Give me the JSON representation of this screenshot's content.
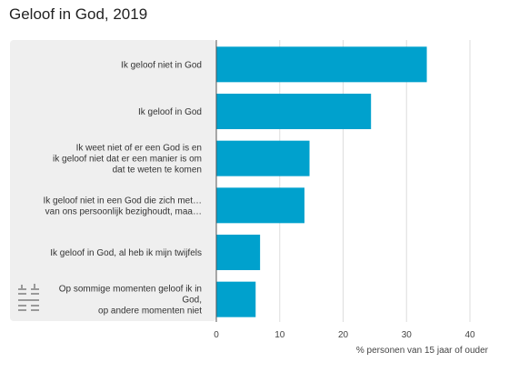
{
  "title": "Geloof in God, 2019",
  "chart_data": {
    "type": "bar",
    "orientation": "horizontal",
    "title": "Geloof in God, 2019",
    "xlabel": "% personen van 15 jaar of ouder",
    "ylabel": "",
    "xlim": [
      0,
      40
    ],
    "xticks": [
      0,
      10,
      20,
      30,
      40
    ],
    "categories": [
      [
        "Ik geloof niet in God"
      ],
      [
        "Ik geloof in God"
      ],
      [
        "Ik weet niet of er een God is en",
        "ik geloof niet dat er een manier is om",
        "dat te weten te komen"
      ],
      [
        "Ik geloof niet in een God die zich met…",
        "van ons persoonlijk bezighoudt, maa…"
      ],
      [
        "Ik geloof in God, al heb ik mijn twijfels"
      ],
      [
        "Op sommige momenten geloof ik in",
        "God,",
        "op andere momenten niet"
      ]
    ],
    "values": [
      33.2,
      24.4,
      14.7,
      13.9,
      6.9,
      6.2
    ],
    "bar_color": "#00a1cd",
    "grid": true,
    "legend": "none"
  }
}
